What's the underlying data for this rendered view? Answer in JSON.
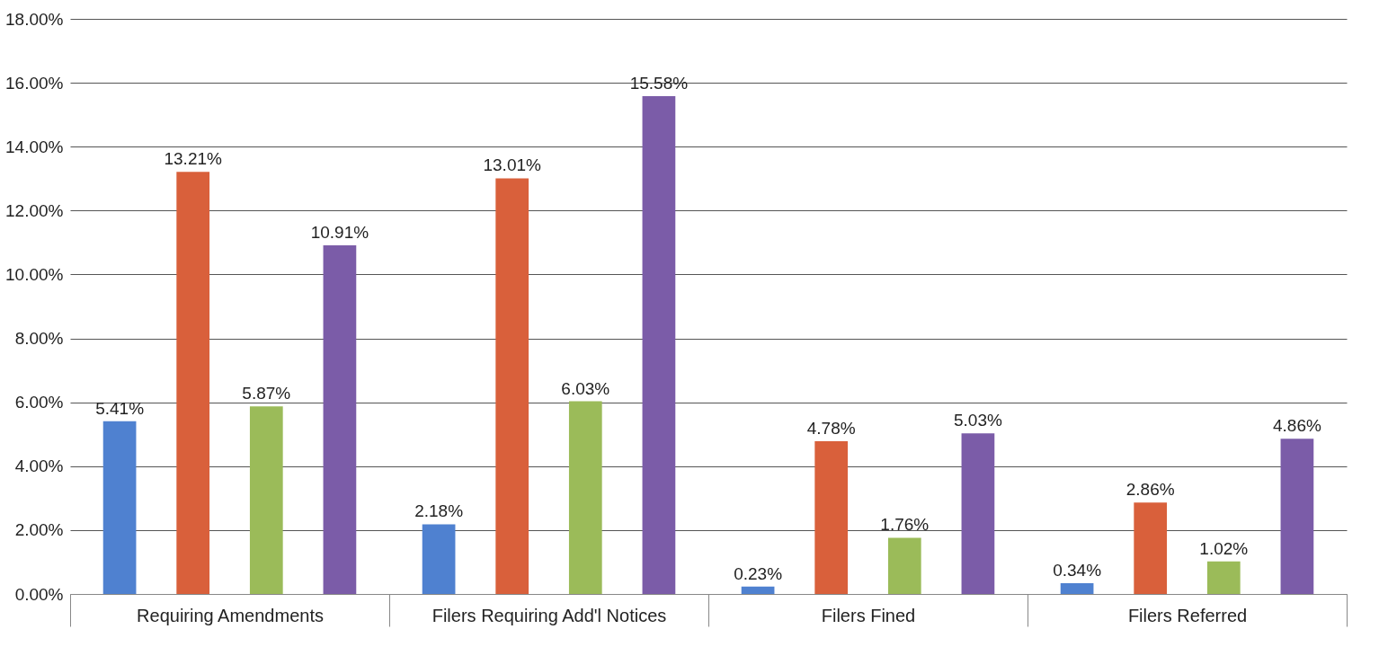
{
  "chart_data": {
    "type": "bar",
    "categories": [
      "Requiring Amendments",
      "Filers Requiring Add'l Notices",
      "Filers Fined",
      "Filers Referred"
    ],
    "series": [
      {
        "color": "#4f81d0",
        "values": [
          5.41,
          2.18,
          0.23,
          0.34
        ],
        "value_labels": [
          "5.41%",
          "2.18%",
          "0.23%",
          "0.34%"
        ]
      },
      {
        "color": "#d9603b",
        "values": [
          13.21,
          13.01,
          4.78,
          2.86
        ],
        "value_labels": [
          "13.21%",
          "13.01%",
          "4.78%",
          "2.86%"
        ]
      },
      {
        "color": "#9bbb59",
        "values": [
          5.87,
          6.03,
          1.76,
          1.02
        ],
        "value_labels": [
          "5.87%",
          "6.03%",
          "1.76%",
          "1.02%"
        ]
      },
      {
        "color": "#7b5ca8",
        "values": [
          10.91,
          15.58,
          5.03,
          4.86
        ],
        "value_labels": [
          "10.91%",
          "15.58%",
          "5.03%",
          "4.86%"
        ]
      }
    ],
    "ylim": [
      0,
      18
    ],
    "yticks": [
      {
        "value": 0,
        "label": "0.00%"
      },
      {
        "value": 2,
        "label": "2.00%"
      },
      {
        "value": 4,
        "label": "4.00%"
      },
      {
        "value": 6,
        "label": "6.00%"
      },
      {
        "value": 8,
        "label": "8.00%"
      },
      {
        "value": 10,
        "label": "10.00%"
      },
      {
        "value": 12,
        "label": "12.00%"
      },
      {
        "value": 14,
        "label": "14.00%"
      },
      {
        "value": 16,
        "label": "16.00%"
      },
      {
        "value": 18,
        "label": "18.00%"
      }
    ],
    "grid": "y",
    "legend": false
  }
}
